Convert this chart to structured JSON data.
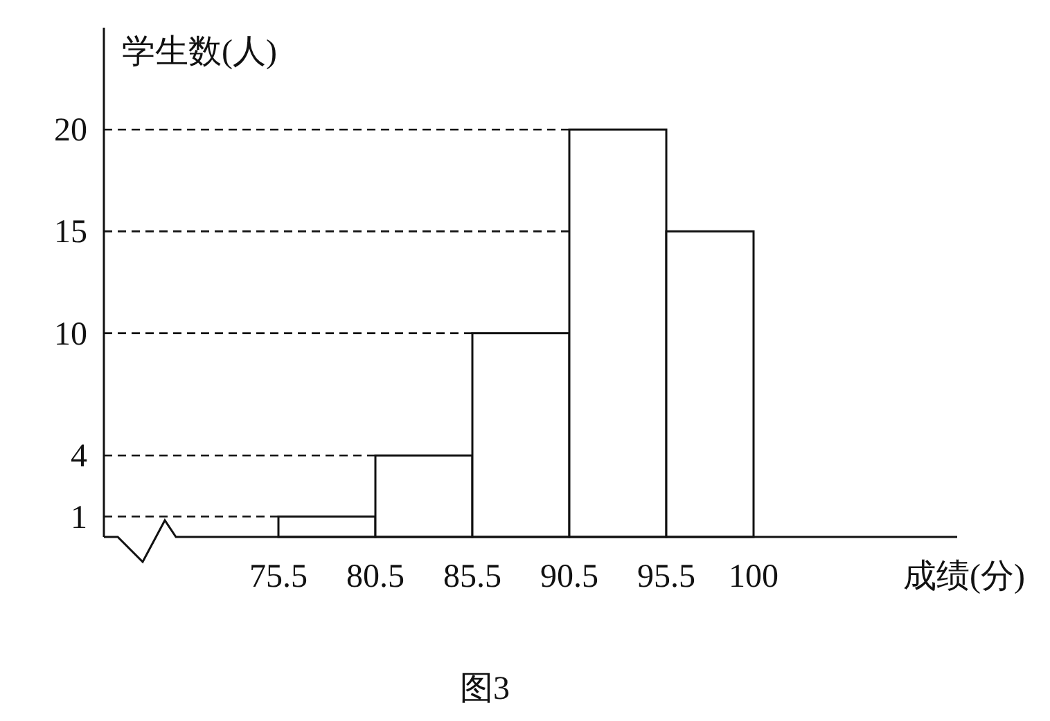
{
  "chart_data": {
    "type": "histogram",
    "bins": [
      75.5,
      80.5,
      85.5,
      90.5,
      95.5,
      100
    ],
    "values": [
      1,
      4,
      10,
      20,
      15
    ],
    "color": "#ffffff",
    "xlim": [
      66.5,
      110.5
    ],
    "xticks": [
      75.5,
      80.5,
      85.5,
      90.5,
      95.5,
      100
    ],
    "ylim": [
      0,
      25
    ],
    "yticks": [
      1,
      4,
      10,
      15,
      20
    ],
    "xlabel": "成绩(分)",
    "ylabel": "学生数(人)",
    "ref_lines": [
      {
        "axis": "y",
        "value": 1,
        "line_style": "dashed"
      },
      {
        "axis": "y",
        "value": 4,
        "line_style": "dashed"
      },
      {
        "axis": "y",
        "value": 10,
        "line_style": "dashed"
      },
      {
        "axis": "y",
        "value": 15,
        "line_style": "dashed"
      },
      {
        "axis": "y",
        "value": 20,
        "line_style": "dashed"
      }
    ],
    "annotations": [
      "图3"
    ]
  }
}
